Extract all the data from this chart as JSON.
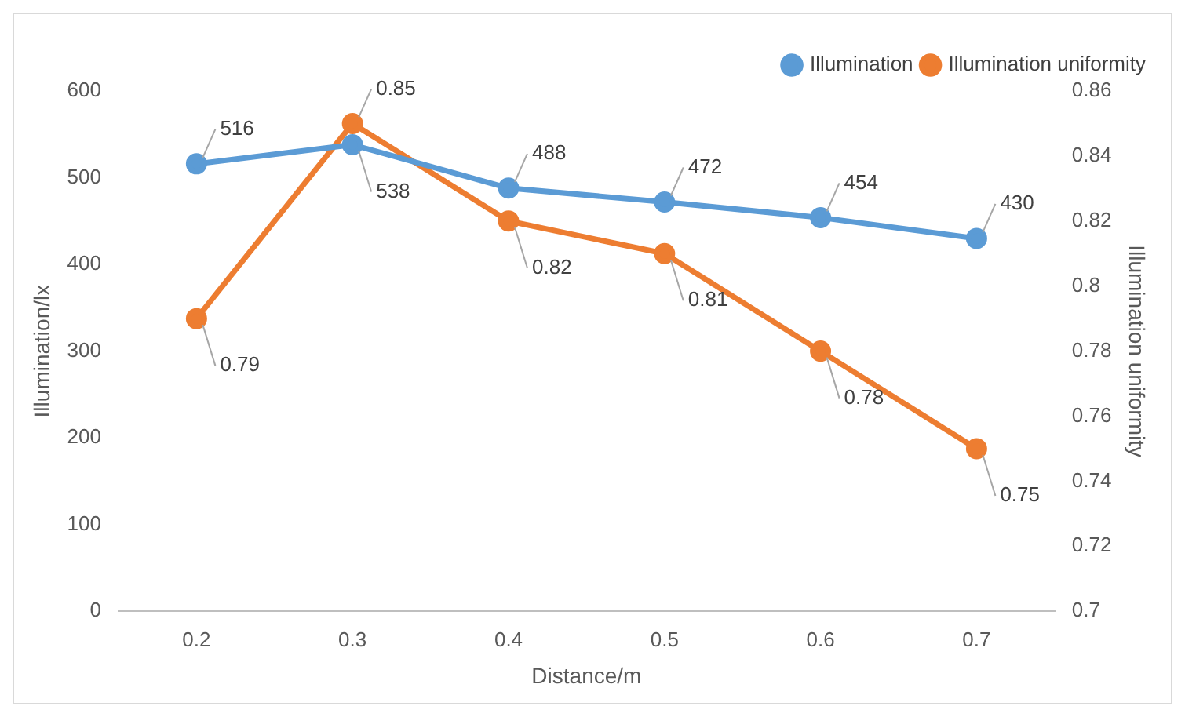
{
  "chart_data": {
    "type": "line",
    "xlabel": "Distance/m",
    "ylabel": "Illumination/lx",
    "y2label": "Illumination uniformity",
    "categories": [
      "0.2",
      "0.3",
      "0.4",
      "0.5",
      "0.6",
      "0.7"
    ],
    "series": [
      {
        "name": "Illumination",
        "color": "#5b9bd5",
        "values": [
          516,
          538,
          488,
          472,
          454,
          430
        ]
      },
      {
        "name": "Illumination uniformity",
        "color": "#ed7d31",
        "axis": "y2",
        "values": [
          0.79,
          0.85,
          0.82,
          0.81,
          0.78,
          0.75
        ]
      }
    ],
    "ylim": [
      0,
      600
    ],
    "yticks": [
      0,
      100,
      200,
      300,
      400,
      500,
      600
    ],
    "y2lim": [
      0.7,
      0.86
    ],
    "y2ticks": [
      0.7,
      0.72,
      0.74,
      0.76,
      0.78,
      0.8,
      0.82,
      0.84,
      0.86
    ],
    "grid": false,
    "legend": "top right",
    "marker": "circle",
    "line_style": "solid",
    "data_labels": true
  }
}
